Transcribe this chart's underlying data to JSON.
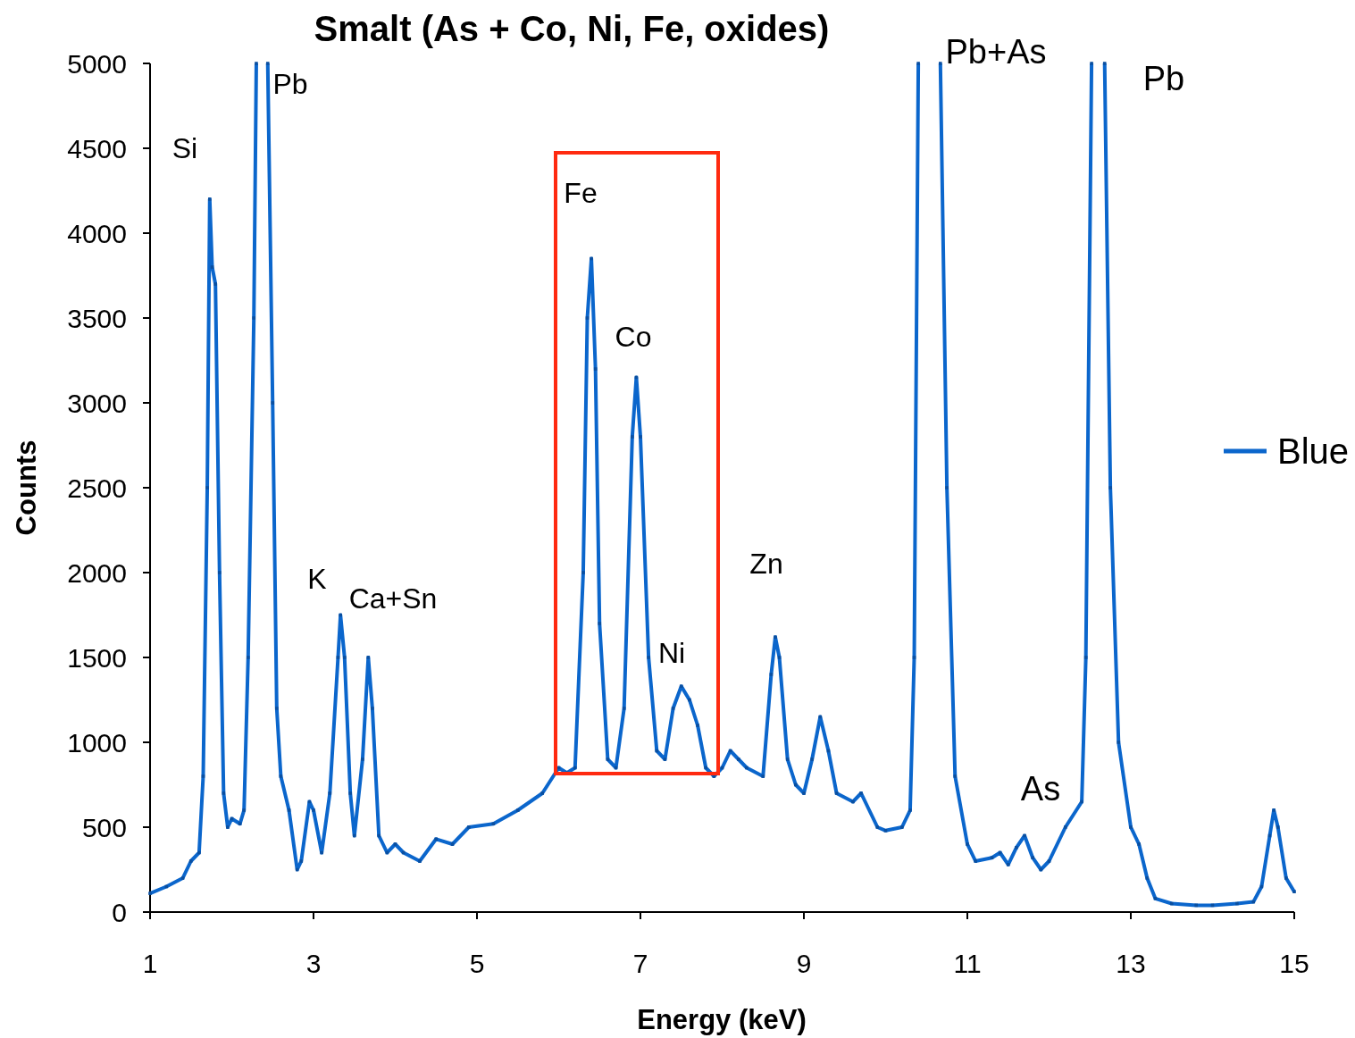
{
  "chart_data": {
    "type": "line",
    "title": "Smalt (As + Co, Ni, Fe, oxides)",
    "xlabel": "Energy (keV)",
    "ylabel": "Counts",
    "xlim": [
      1,
      15
    ],
    "xticks": [
      1,
      3,
      5,
      7,
      9,
      11,
      13,
      15
    ],
    "ylim": [
      0,
      5000
    ],
    "yticks": [
      0,
      500,
      1000,
      1500,
      2000,
      2500,
      3000,
      3500,
      4000,
      4500,
      5000
    ],
    "legend": "right",
    "marker": "square",
    "line_style": "solid",
    "grid": false,
    "annotations": [
      "Si",
      "Pb",
      "K",
      "Ca+Sn",
      "Fe",
      "Co",
      "Ni",
      "Zn",
      "Pb+As",
      "Pb",
      "As"
    ],
    "series": [
      {
        "name": "Blue",
        "color": "#0b66cc",
        "x": [
          1.0,
          1.2,
          1.4,
          1.5,
          1.6,
          1.65,
          1.7,
          1.73,
          1.76,
          1.8,
          1.85,
          1.9,
          1.95,
          2.0,
          2.1,
          2.15,
          2.2,
          2.27,
          2.3,
          2.37,
          2.44,
          2.5,
          2.55,
          2.6,
          2.7,
          2.8,
          2.85,
          2.95,
          3.0,
          3.1,
          3.2,
          3.3,
          3.33,
          3.38,
          3.45,
          3.5,
          3.6,
          3.67,
          3.72,
          3.8,
          3.9,
          4.0,
          4.1,
          4.3,
          4.5,
          4.7,
          4.9,
          5.2,
          5.5,
          5.8,
          6.0,
          6.1,
          6.2,
          6.3,
          6.35,
          6.4,
          6.45,
          6.5,
          6.6,
          6.7,
          6.8,
          6.9,
          6.95,
          7.0,
          7.1,
          7.2,
          7.3,
          7.4,
          7.5,
          7.6,
          7.7,
          7.8,
          7.9,
          8.0,
          8.1,
          8.2,
          8.3,
          8.5,
          8.6,
          8.65,
          8.7,
          8.8,
          8.9,
          9.0,
          9.1,
          9.2,
          9.3,
          9.4,
          9.6,
          9.7,
          9.9,
          10.0,
          10.2,
          10.3,
          10.35,
          10.4,
          10.55,
          10.67,
          10.75,
          10.85,
          11.0,
          11.1,
          11.3,
          11.4,
          11.5,
          11.6,
          11.7,
          11.8,
          11.9,
          12.0,
          12.2,
          12.4,
          12.45,
          12.52,
          12.6,
          12.68,
          12.75,
          12.85,
          13.0,
          13.1,
          13.2,
          13.3,
          13.5,
          13.8,
          14.0,
          14.3,
          14.5,
          14.6,
          14.7,
          14.75,
          14.8,
          14.9,
          15.0
        ],
        "values": [
          110,
          150,
          200,
          300,
          350,
          800,
          2500,
          4200,
          3800,
          3700,
          2000,
          700,
          500,
          550,
          520,
          600,
          1500,
          3500,
          5000,
          null,
          5000,
          3000,
          1200,
          800,
          600,
          250,
          300,
          650,
          600,
          350,
          700,
          1500,
          1750,
          1500,
          700,
          450,
          900,
          1500,
          1200,
          450,
          350,
          400,
          350,
          300,
          430,
          400,
          500,
          520,
          600,
          700,
          850,
          820,
          850,
          2000,
          3500,
          3850,
          3200,
          1700,
          900,
          850,
          1200,
          2800,
          3150,
          2800,
          1500,
          950,
          900,
          1200,
          1330,
          1250,
          1100,
          850,
          800,
          850,
          950,
          900,
          850,
          800,
          1400,
          1620,
          1500,
          900,
          750,
          700,
          900,
          1150,
          950,
          700,
          650,
          700,
          500,
          480,
          500,
          600,
          1500,
          5000,
          null,
          5000,
          2500,
          800,
          400,
          300,
          320,
          350,
          280,
          380,
          450,
          320,
          250,
          300,
          500,
          650,
          1500,
          5000,
          null,
          5000,
          2500,
          1000,
          500,
          400,
          200,
          80,
          50,
          40,
          40,
          50,
          60,
          150,
          450,
          600,
          500,
          200,
          120
        ]
      }
    ]
  }
}
